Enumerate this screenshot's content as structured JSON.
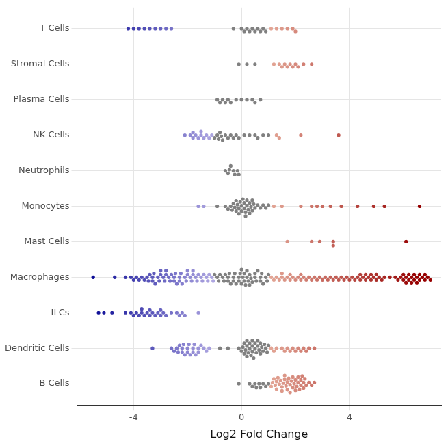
{
  "chart_data": {
    "type": "scatter",
    "x_label": "Log2 Fold Change",
    "categories": [
      "B Cells",
      "Dendritic Cells",
      "ILCs",
      "Macrophages",
      "Mast Cells",
      "Monocytes",
      "Neutrophils",
      "NK Cells",
      "Plasma Cells",
      "Stromal Cells",
      "T Cells"
    ],
    "values": [
      [
        -0.1,
        0.3,
        0.4,
        0.5,
        0.55,
        0.65,
        0.7,
        0.8,
        0.9,
        1.0,
        1.1,
        1.15,
        1.2,
        1.25,
        1.3,
        1.35,
        1.4,
        1.45,
        1.5,
        1.55,
        1.6,
        1.65,
        1.7,
        1.75,
        1.8,
        1.85,
        1.9,
        1.95,
        2.0,
        2.05,
        2.1,
        2.15,
        2.2,
        2.25,
        2.3,
        2.35,
        2.4,
        2.5,
        2.6,
        2.7,
        1.3,
        1.5,
        1.7,
        1.9,
        2.1,
        2.3,
        1.6,
        1.8,
        2.0,
        2.2
      ],
      [
        -3.3,
        -2.6,
        -2.5,
        -2.4,
        -2.35,
        -2.3,
        -2.2,
        -2.15,
        -2.1,
        -2.0,
        -1.95,
        -1.9,
        -1.8,
        -1.75,
        -1.7,
        -1.6,
        -1.5,
        -1.4,
        -1.3,
        -1.2,
        -2.2,
        -2.0,
        -1.8,
        -1.6,
        -0.8,
        -0.5,
        -0.1,
        0,
        0.05,
        0.1,
        0.15,
        0.2,
        0.25,
        0.3,
        0.35,
        0.4,
        0.45,
        0.5,
        0.55,
        0.6,
        0.65,
        0.7,
        0.75,
        0.8,
        0.85,
        0.9,
        0.95,
        1.0,
        1.1,
        1.2,
        1.3,
        0.1,
        0.2,
        0.3,
        0.4,
        0.5,
        0.6,
        0.7,
        0.2,
        0.4,
        1.5,
        1.6,
        1.7,
        1.8,
        1.9,
        2.0,
        2.1,
        2.2,
        2.3,
        2.4,
        2.5,
        2.7
      ],
      [
        -5.3,
        -5.1,
        -4.8,
        -4.3,
        -4.1,
        -4.0,
        -3.9,
        -3.8,
        -3.7,
        -3.6,
        -3.5,
        -3.4,
        -3.3,
        -3.2,
        -3.1,
        -3.0,
        -2.9,
        -2.8,
        -2.6,
        -2.4,
        -2.2,
        -2.1,
        -1.6,
        -3.7,
        -3.4,
        -3.0,
        -2.3
      ],
      [
        -5.5,
        -4.7,
        -4.3,
        -4.1,
        -4.0,
        -3.9,
        -3.8,
        -3.7,
        -3.6,
        -3.5,
        -3.45,
        -3.4,
        -3.3,
        -3.25,
        -3.2,
        -3.1,
        -3.05,
        -3.0,
        -2.9,
        -2.85,
        -2.8,
        -2.7,
        -2.65,
        -2.6,
        -2.5,
        -2.45,
        -2.4,
        -2.3,
        -2.25,
        -2.2,
        -2.1,
        -2.05,
        -2.0,
        -1.9,
        -1.85,
        -1.8,
        -1.7,
        -1.65,
        -1.6,
        -1.5,
        -1.45,
        -1.4,
        -1.3,
        -1.25,
        -1.2,
        -1.1,
        -1.05,
        -1.0,
        -0.9,
        -0.85,
        -0.8,
        -0.7,
        -0.65,
        -0.6,
        -0.5,
        -0.45,
        -0.4,
        -0.3,
        -0.25,
        -0.2,
        -0.1,
        -0.05,
        0,
        0.05,
        0.1,
        0.15,
        0.2,
        0.25,
        0.3,
        0.35,
        0.4,
        0.5,
        0.55,
        0.6,
        0.7,
        0.75,
        0.8,
        0.9,
        0.95,
        1.0,
        -0.3,
        -0.1,
        0,
        0.1,
        0.2,
        0.3,
        0.5,
        -0.5,
        0.7,
        1.1,
        1.2,
        1.3,
        1.4,
        1.5,
        1.6,
        1.7,
        1.8,
        1.9,
        2.0,
        2.1,
        2.2,
        2.3,
        2.4,
        2.5,
        2.6,
        2.7,
        2.8,
        2.9,
        3.0,
        3.1,
        3.2,
        3.3,
        3.4,
        3.5,
        3.6,
        3.7,
        3.8,
        3.9,
        4.0,
        4.1,
        4.2,
        4.3,
        4.4,
        4.5,
        4.6,
        4.7,
        4.8,
        4.9,
        5.0,
        5.1,
        5.2,
        5.3,
        5.5,
        5.7,
        5.8,
        5.9,
        6.0,
        6.1,
        6.2,
        6.3,
        6.4,
        6.5,
        6.6,
        6.7,
        6.8,
        6.9,
        7.0,
        4.4,
        4.6,
        4.8,
        5.0,
        6.0,
        6.2,
        6.4,
        6.6,
        6.8,
        6.3,
        6.5,
        6.1,
        -3.0,
        -2.5,
        -2.0,
        -3.3,
        -2.8,
        -2.3,
        -1.8,
        1.5,
        1.8,
        2.2
      ],
      [
        1.7,
        2.6,
        2.9,
        3.4,
        3.4,
        6.1
      ],
      [
        -1.6,
        -1.4,
        -0.9,
        -0.6,
        -0.5,
        -0.4,
        -0.35,
        -0.3,
        -0.25,
        -0.2,
        -0.15,
        -0.1,
        -0.05,
        0,
        0.05,
        0.1,
        0.15,
        0.2,
        0.25,
        0.3,
        0.35,
        0.4,
        0.45,
        0.5,
        0.6,
        0.7,
        0.8,
        0.9,
        1.0,
        1.2,
        -0.2,
        0,
        0.1,
        0.2,
        0.3,
        -0.1,
        0.4,
        0.15,
        1.5,
        2.2,
        2.6,
        2.8,
        3.0,
        3.3,
        3.7,
        4.3,
        4.9,
        5.3,
        6.6
      ],
      [
        -0.6,
        -0.5,
        -0.45,
        -0.4,
        -0.3,
        -0.25,
        -0.15,
        -0.1
      ],
      [
        -2.1,
        -1.9,
        -1.8,
        -1.7,
        -1.6,
        -1.5,
        -1.4,
        -1.3,
        -1.2,
        -1.1,
        -1.8,
        -1.5,
        -1.0,
        -0.9,
        -0.85,
        -0.8,
        -0.75,
        -0.7,
        -0.6,
        -0.5,
        -0.4,
        -0.3,
        -0.2,
        -0.1,
        0.1,
        0.3,
        0.5,
        0.6,
        0.8,
        1.0,
        1.3,
        1.4,
        2.2,
        3.6
      ],
      [
        -0.9,
        -0.8,
        -0.7,
        -0.6,
        -0.5,
        -0.4,
        -0.2,
        0,
        0.2,
        0.4,
        0.5,
        0.7
      ],
      [
        -0.1,
        0.2,
        0.5,
        1.2,
        1.4,
        1.5,
        1.6,
        1.7,
        1.8,
        1.9,
        2.0,
        2.1,
        2.3,
        2.6
      ],
      [
        -4.2,
        -4.0,
        -3.8,
        -3.6,
        -3.4,
        -3.2,
        -3.0,
        -2.8,
        -2.6,
        -0.3,
        0,
        0.1,
        0.2,
        0.3,
        0.4,
        0.5,
        0.6,
        0.7,
        0.8,
        0.9,
        1.1,
        1.3,
        1.5,
        1.7,
        1.9,
        2.0
      ]
    ],
    "xlim": [
      -6.1,
      7.4
    ],
    "xticks": [
      -4,
      0,
      4
    ],
    "grid": true,
    "marker": "circle"
  }
}
